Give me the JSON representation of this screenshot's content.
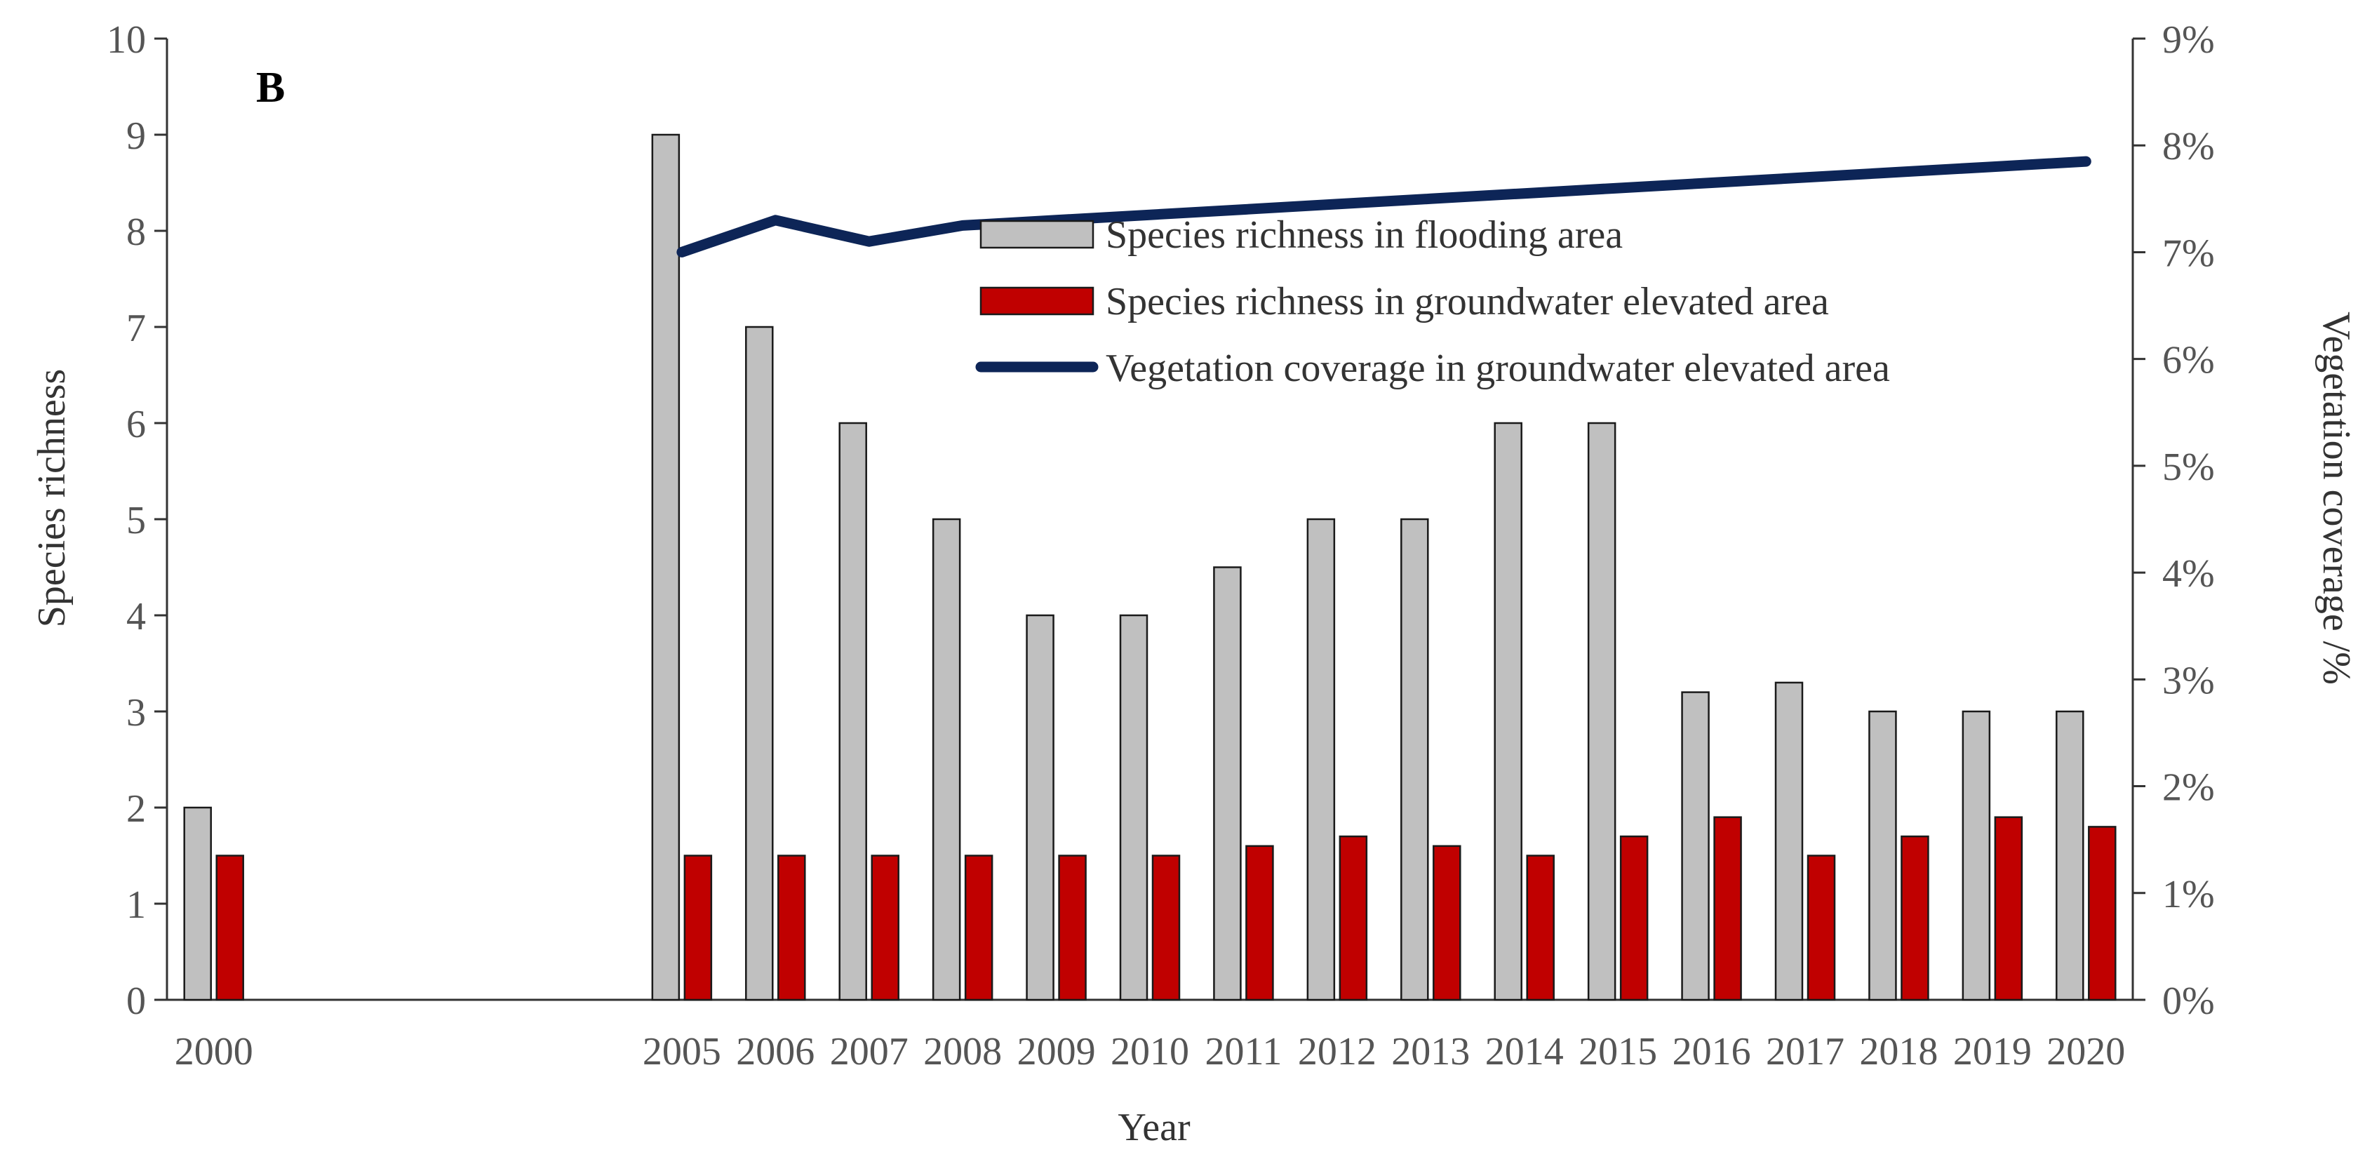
{
  "chart_data": {
    "type": "bar",
    "panel_label": "B",
    "categories": [
      "2000",
      "",
      "",
      "",
      "",
      "2005",
      "2006",
      "2007",
      "2008",
      "2009",
      "2010",
      "2011",
      "2012",
      "2013",
      "2014",
      "2015",
      "2016",
      "2017",
      "2018",
      "2019",
      "2020"
    ],
    "xlabel": "Year",
    "ylabel_left": "Species richness",
    "ylabel_right": "Vegetation coverage /%",
    "ylim_left": [
      0,
      10
    ],
    "yticks_left": [
      "0",
      "1",
      "2",
      "3",
      "4",
      "5",
      "6",
      "7",
      "8",
      "9",
      "10"
    ],
    "ylim_right": [
      0,
      9
    ],
    "yticks_right": [
      "0%",
      "1%",
      "2%",
      "3%",
      "4%",
      "5%",
      "6%",
      "7%",
      "8%",
      "9%"
    ],
    "grid": false,
    "legend_position": "upper-center",
    "series": [
      {
        "name": "Species richness in flooding area",
        "kind": "bar",
        "axis": "left",
        "color": "#c0c0c0",
        "values": [
          2,
          null,
          null,
          null,
          null,
          9,
          7,
          6,
          5,
          4,
          4,
          4.5,
          5,
          5,
          6,
          6,
          3.2,
          3.3,
          3,
          3,
          3
        ]
      },
      {
        "name": "Species richness in groundwater elevated area",
        "kind": "bar",
        "axis": "left",
        "color": "#c00000",
        "values": [
          1.5,
          null,
          null,
          null,
          null,
          1.5,
          1.5,
          1.5,
          1.5,
          1.5,
          1.5,
          1.6,
          1.7,
          1.6,
          1.5,
          1.7,
          1.9,
          1.5,
          1.7,
          1.9,
          1.8
        ]
      },
      {
        "name": "Vegetation coverage in groundwater elevated area",
        "kind": "line",
        "axis": "right",
        "color": "#0d2557",
        "values": [
          null,
          null,
          null,
          null,
          null,
          7.0,
          7.3,
          7.1,
          7.25,
          7.3,
          7.35,
          7.4,
          7.45,
          7.5,
          7.55,
          7.6,
          7.65,
          7.7,
          7.75,
          7.8,
          7.85
        ]
      }
    ]
  }
}
